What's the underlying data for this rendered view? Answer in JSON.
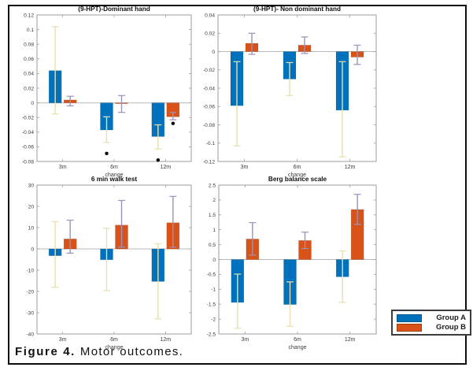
{
  "figure": {
    "caption_label": "Figure 4.",
    "caption_text": "Motor outcomes."
  },
  "legend": {
    "items": [
      {
        "label": "Group A",
        "color": "#0072BD"
      },
      {
        "label": "Group B",
        "color": "#D95319"
      }
    ]
  },
  "colors": {
    "group_a": "#0072BD",
    "group_b": "#D95319",
    "err_a": "#E7E0AF",
    "err_b": "#9D92B9",
    "axis": "#9e9e9e",
    "baseline": "#b8b8b8",
    "tick_text": "#3a3a3a",
    "title_text": "#101010",
    "outlier": "#000000"
  },
  "chart_data": [
    {
      "id": "hpt-dominant",
      "type": "bar",
      "title": "(9-HPT)-Dominant hand",
      "xlabel": "change",
      "categories": [
        "3m",
        "6m",
        "12m"
      ],
      "ylim": [
        -0.08,
        0.12
      ],
      "ytick_labels": [
        "0.12",
        "0.1",
        "0.08",
        "0.06",
        "0.04",
        "0.02",
        "0",
        "-0.02",
        "-0.04",
        "-0.06",
        "-0.08"
      ],
      "legend_position": "none",
      "grid": false,
      "series": [
        {
          "name": "Group A",
          "color": "#0072BD",
          "err_color": "#E7E0AF",
          "values": [
            0.044,
            -0.037,
            -0.046
          ],
          "err_low": [
            -0.015,
            -0.054,
            -0.063
          ],
          "err_high": [
            0.104,
            -0.019,
            -0.03
          ]
        },
        {
          "name": "Group B",
          "color": "#D95319",
          "err_color": "#9D92B9",
          "values": [
            0.004,
            -0.001,
            -0.019
          ],
          "err_low": [
            -0.004,
            -0.013,
            -0.023
          ],
          "err_high": [
            0.009,
            0.01,
            -0.013
          ]
        }
      ],
      "outliers": [
        {
          "category": "6m",
          "series": "Group A",
          "value": -0.069
        },
        {
          "category": "12m",
          "series": "Group A",
          "value": -0.078
        },
        {
          "category": "12m",
          "series": "Group B",
          "value": -0.028
        }
      ]
    },
    {
      "id": "hpt-nondominant",
      "type": "bar",
      "title": "(9-HPT)- Non dominant hand",
      "xlabel": "change",
      "categories": [
        "3m",
        "6m",
        "12m"
      ],
      "ylim": [
        -0.12,
        0.04
      ],
      "ytick_labels": [
        "0.04",
        "0.02",
        "0",
        "-0.02",
        "-0.04",
        "-0.06",
        "-0.08",
        "-0.1",
        "-0.12"
      ],
      "legend_position": "none",
      "grid": false,
      "series": [
        {
          "name": "Group A",
          "color": "#0072BD",
          "err_color": "#E7E0AF",
          "values": [
            -0.059,
            -0.03,
            -0.064
          ],
          "err_low": [
            -0.103,
            -0.048,
            -0.115
          ],
          "err_high": [
            -0.011,
            -0.012,
            -0.011
          ]
        },
        {
          "name": "Group B",
          "color": "#D95319",
          "err_color": "#9D92B9",
          "values": [
            0.009,
            0.007,
            -0.006
          ],
          "err_low": [
            -0.003,
            -0.002,
            -0.014
          ],
          "err_high": [
            0.02,
            0.016,
            0.007
          ]
        }
      ],
      "outliers": []
    },
    {
      "id": "walk-test",
      "type": "bar",
      "title": "6 min walk test",
      "xlabel": "change",
      "categories": [
        "3m",
        "6m",
        "12m"
      ],
      "ylim": [
        -40,
        30
      ],
      "ytick_labels": [
        "30",
        "20",
        "10",
        "0",
        "-10",
        "-20",
        "-30",
        "-40"
      ],
      "legend_position": "none",
      "grid": false,
      "series": [
        {
          "name": "Group A",
          "color": "#0072BD",
          "err_color": "#E7E0AF",
          "values": [
            -3.2,
            -5.1,
            -15.3
          ],
          "err_low": [
            -18.0,
            -19.6,
            -32.9
          ],
          "err_high": [
            12.8,
            9.7,
            2.4
          ]
        },
        {
          "name": "Group B",
          "color": "#D95319",
          "err_color": "#9D92B9",
          "values": [
            4.7,
            11.2,
            12.3
          ],
          "err_low": [
            -2.0,
            0.9,
            0.8
          ],
          "err_high": [
            13.5,
            22.8,
            24.7
          ]
        }
      ],
      "outliers": []
    },
    {
      "id": "berg-balance",
      "type": "bar",
      "title": "Berg balance scale",
      "xlabel": "change",
      "categories": [
        "3m",
        "6m",
        "12m"
      ],
      "ylim": [
        -2.5,
        2.5
      ],
      "ytick_labels": [
        "2.5",
        "2",
        "1.5",
        "1",
        "0.5",
        "0",
        "-0.5",
        "-1",
        "-1.5",
        "-2",
        "-2.5"
      ],
      "legend_position": "outside-right-bottom",
      "grid": false,
      "series": [
        {
          "name": "Group A",
          "color": "#0072BD",
          "err_color": "#E7E0AF",
          "values": [
            -1.44,
            -1.51,
            -0.58
          ],
          "err_low": [
            -2.31,
            -2.24,
            -1.44
          ],
          "err_high": [
            -0.49,
            -0.75,
            0.29
          ]
        },
        {
          "name": "Group B",
          "color": "#D95319",
          "err_color": "#9D92B9",
          "values": [
            0.69,
            0.64,
            1.68
          ],
          "err_low": [
            0.15,
            0.37,
            1.18
          ],
          "err_high": [
            1.24,
            0.92,
            2.19
          ]
        }
      ],
      "outliers": []
    }
  ]
}
